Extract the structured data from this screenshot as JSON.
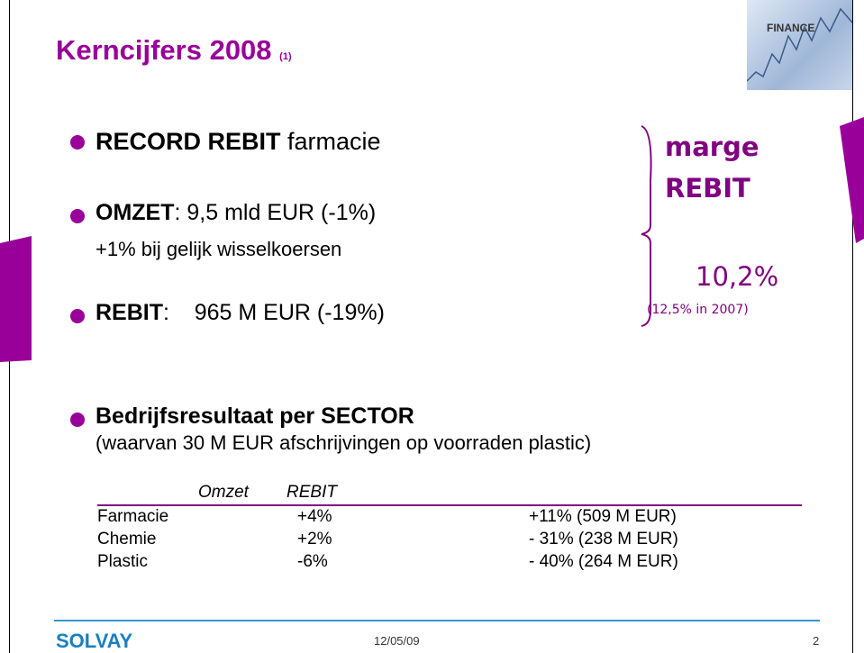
{
  "header": {
    "title": "Kerncijfers 2008",
    "title_note": "(1)",
    "image_label": "FINANCE"
  },
  "bullets": [
    {
      "bold": "RECORD REBIT",
      "text": " farmacie"
    },
    {
      "bold": "OMZET",
      "text": ": 9,5 mld EUR (-1%)",
      "subtext": "+1% bij gelijk wisselkoersen"
    },
    {
      "bold": "REBIT",
      "text": ":    965 M EUR (-19%)"
    }
  ],
  "side": {
    "line1": "marge",
    "line2": "REBIT",
    "value": "10,2%",
    "note": "(12,5% in 2007)"
  },
  "sector": {
    "bold": "Bedrijfsresultaat per SECTOR",
    "note": "(waarvan 30 M EUR afschrijvingen op voorraden plastic)"
  },
  "table": {
    "header": [
      "Omzet",
      "REBIT"
    ],
    "rows": [
      [
        "Farmacie",
        "+4%",
        "+11% (509 M EUR)"
      ],
      [
        "Chemie",
        "+2%",
        "- 31% (238 M EUR)"
      ],
      [
        "Plastic",
        "-6%",
        "- 40% (264 M EUR)"
      ]
    ]
  },
  "footer": {
    "brand": "SOLVAY",
    "date": "12/05/09",
    "page": "2"
  }
}
